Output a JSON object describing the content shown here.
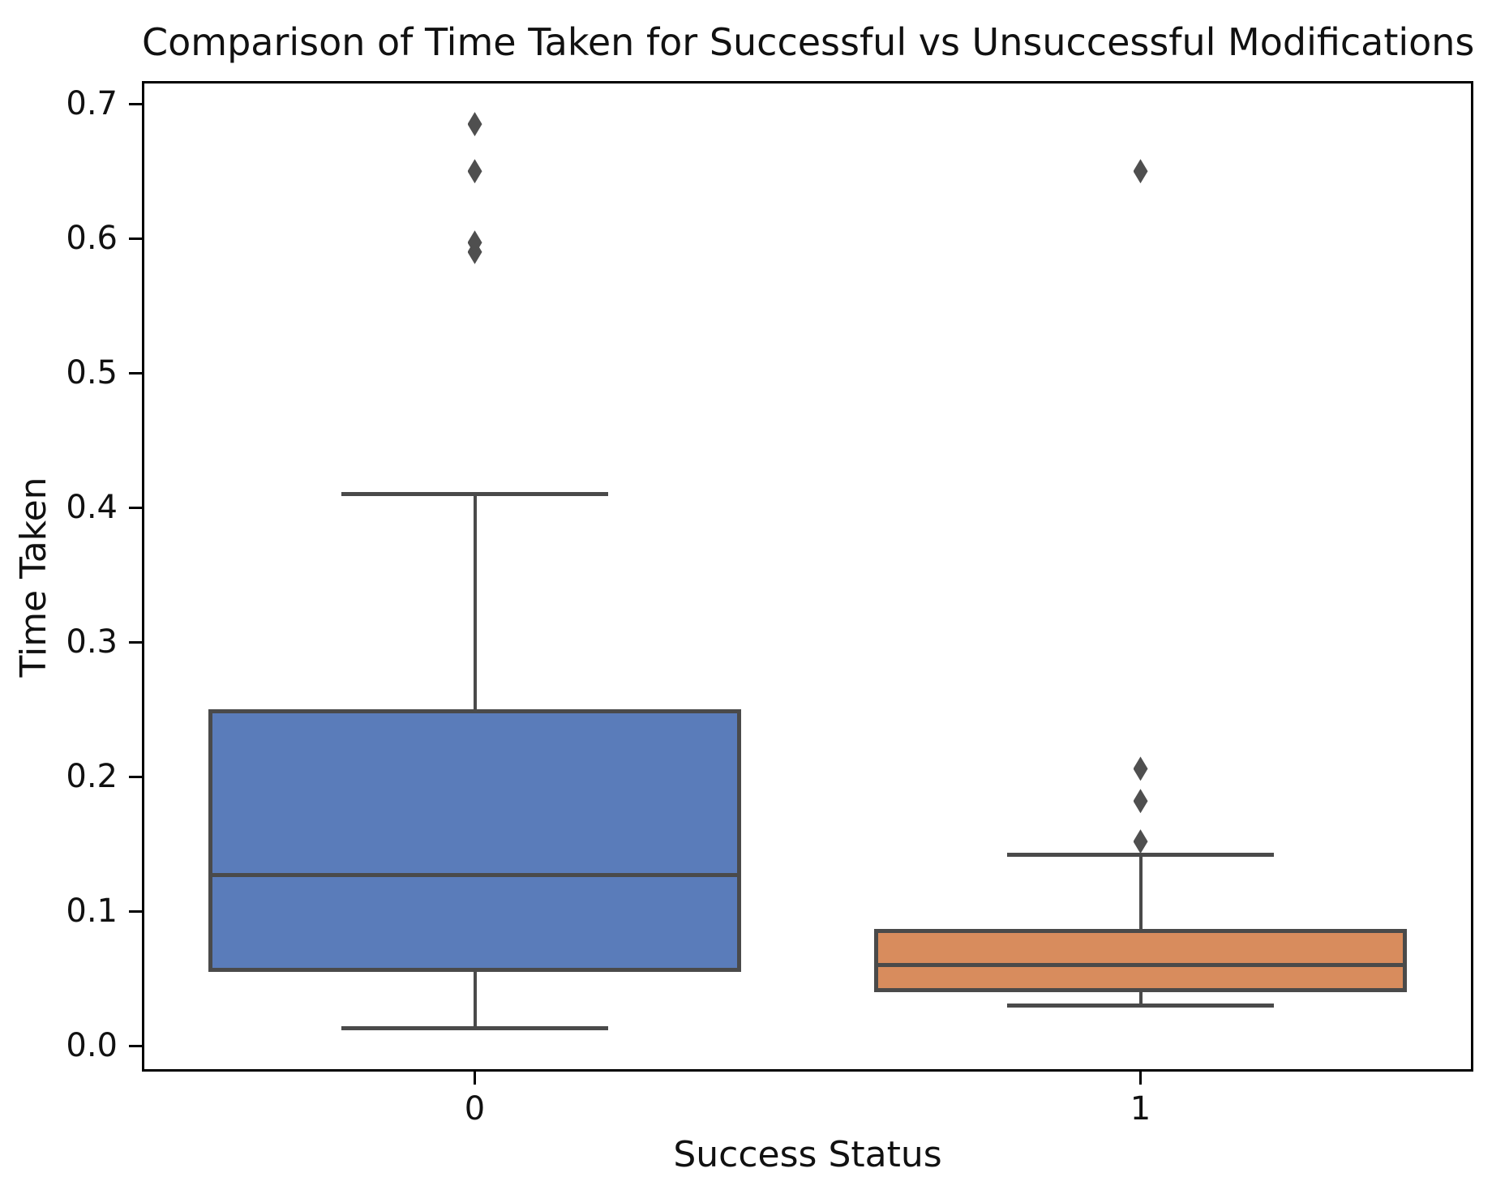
{
  "chart_data": {
    "type": "box",
    "title": "Comparison of Time Taken for Successful vs Unsuccessful Modifications",
    "xlabel": "Success Status",
    "ylabel": "Time Taken",
    "categories": [
      "0",
      "1"
    ],
    "ylim": [
      -0.019,
      0.717
    ],
    "yticks": [
      0.0,
      0.1,
      0.2,
      0.3,
      0.4,
      0.5,
      0.6,
      0.7
    ],
    "ytick_labels": [
      "0.0",
      "0.1",
      "0.2",
      "0.3",
      "0.4",
      "0.5",
      "0.6",
      "0.7"
    ],
    "grid": false,
    "legend": "none",
    "line_color": "#4A4A4A",
    "outlier_color": "#4F4F4F",
    "series": [
      {
        "name": "0",
        "box_color": "#5A7CBA",
        "whisker_low": 0.013,
        "q1": 0.055,
        "median": 0.127,
        "q3": 0.25,
        "whisker_high": 0.41,
        "outliers": [
          0.59,
          0.597,
          0.65,
          0.685
        ]
      },
      {
        "name": "1",
        "box_color": "#D88C5D",
        "whisker_low": 0.03,
        "q1": 0.04,
        "median": 0.06,
        "q3": 0.087,
        "whisker_high": 0.142,
        "outliers": [
          0.152,
          0.182,
          0.206,
          0.65
        ]
      }
    ]
  }
}
